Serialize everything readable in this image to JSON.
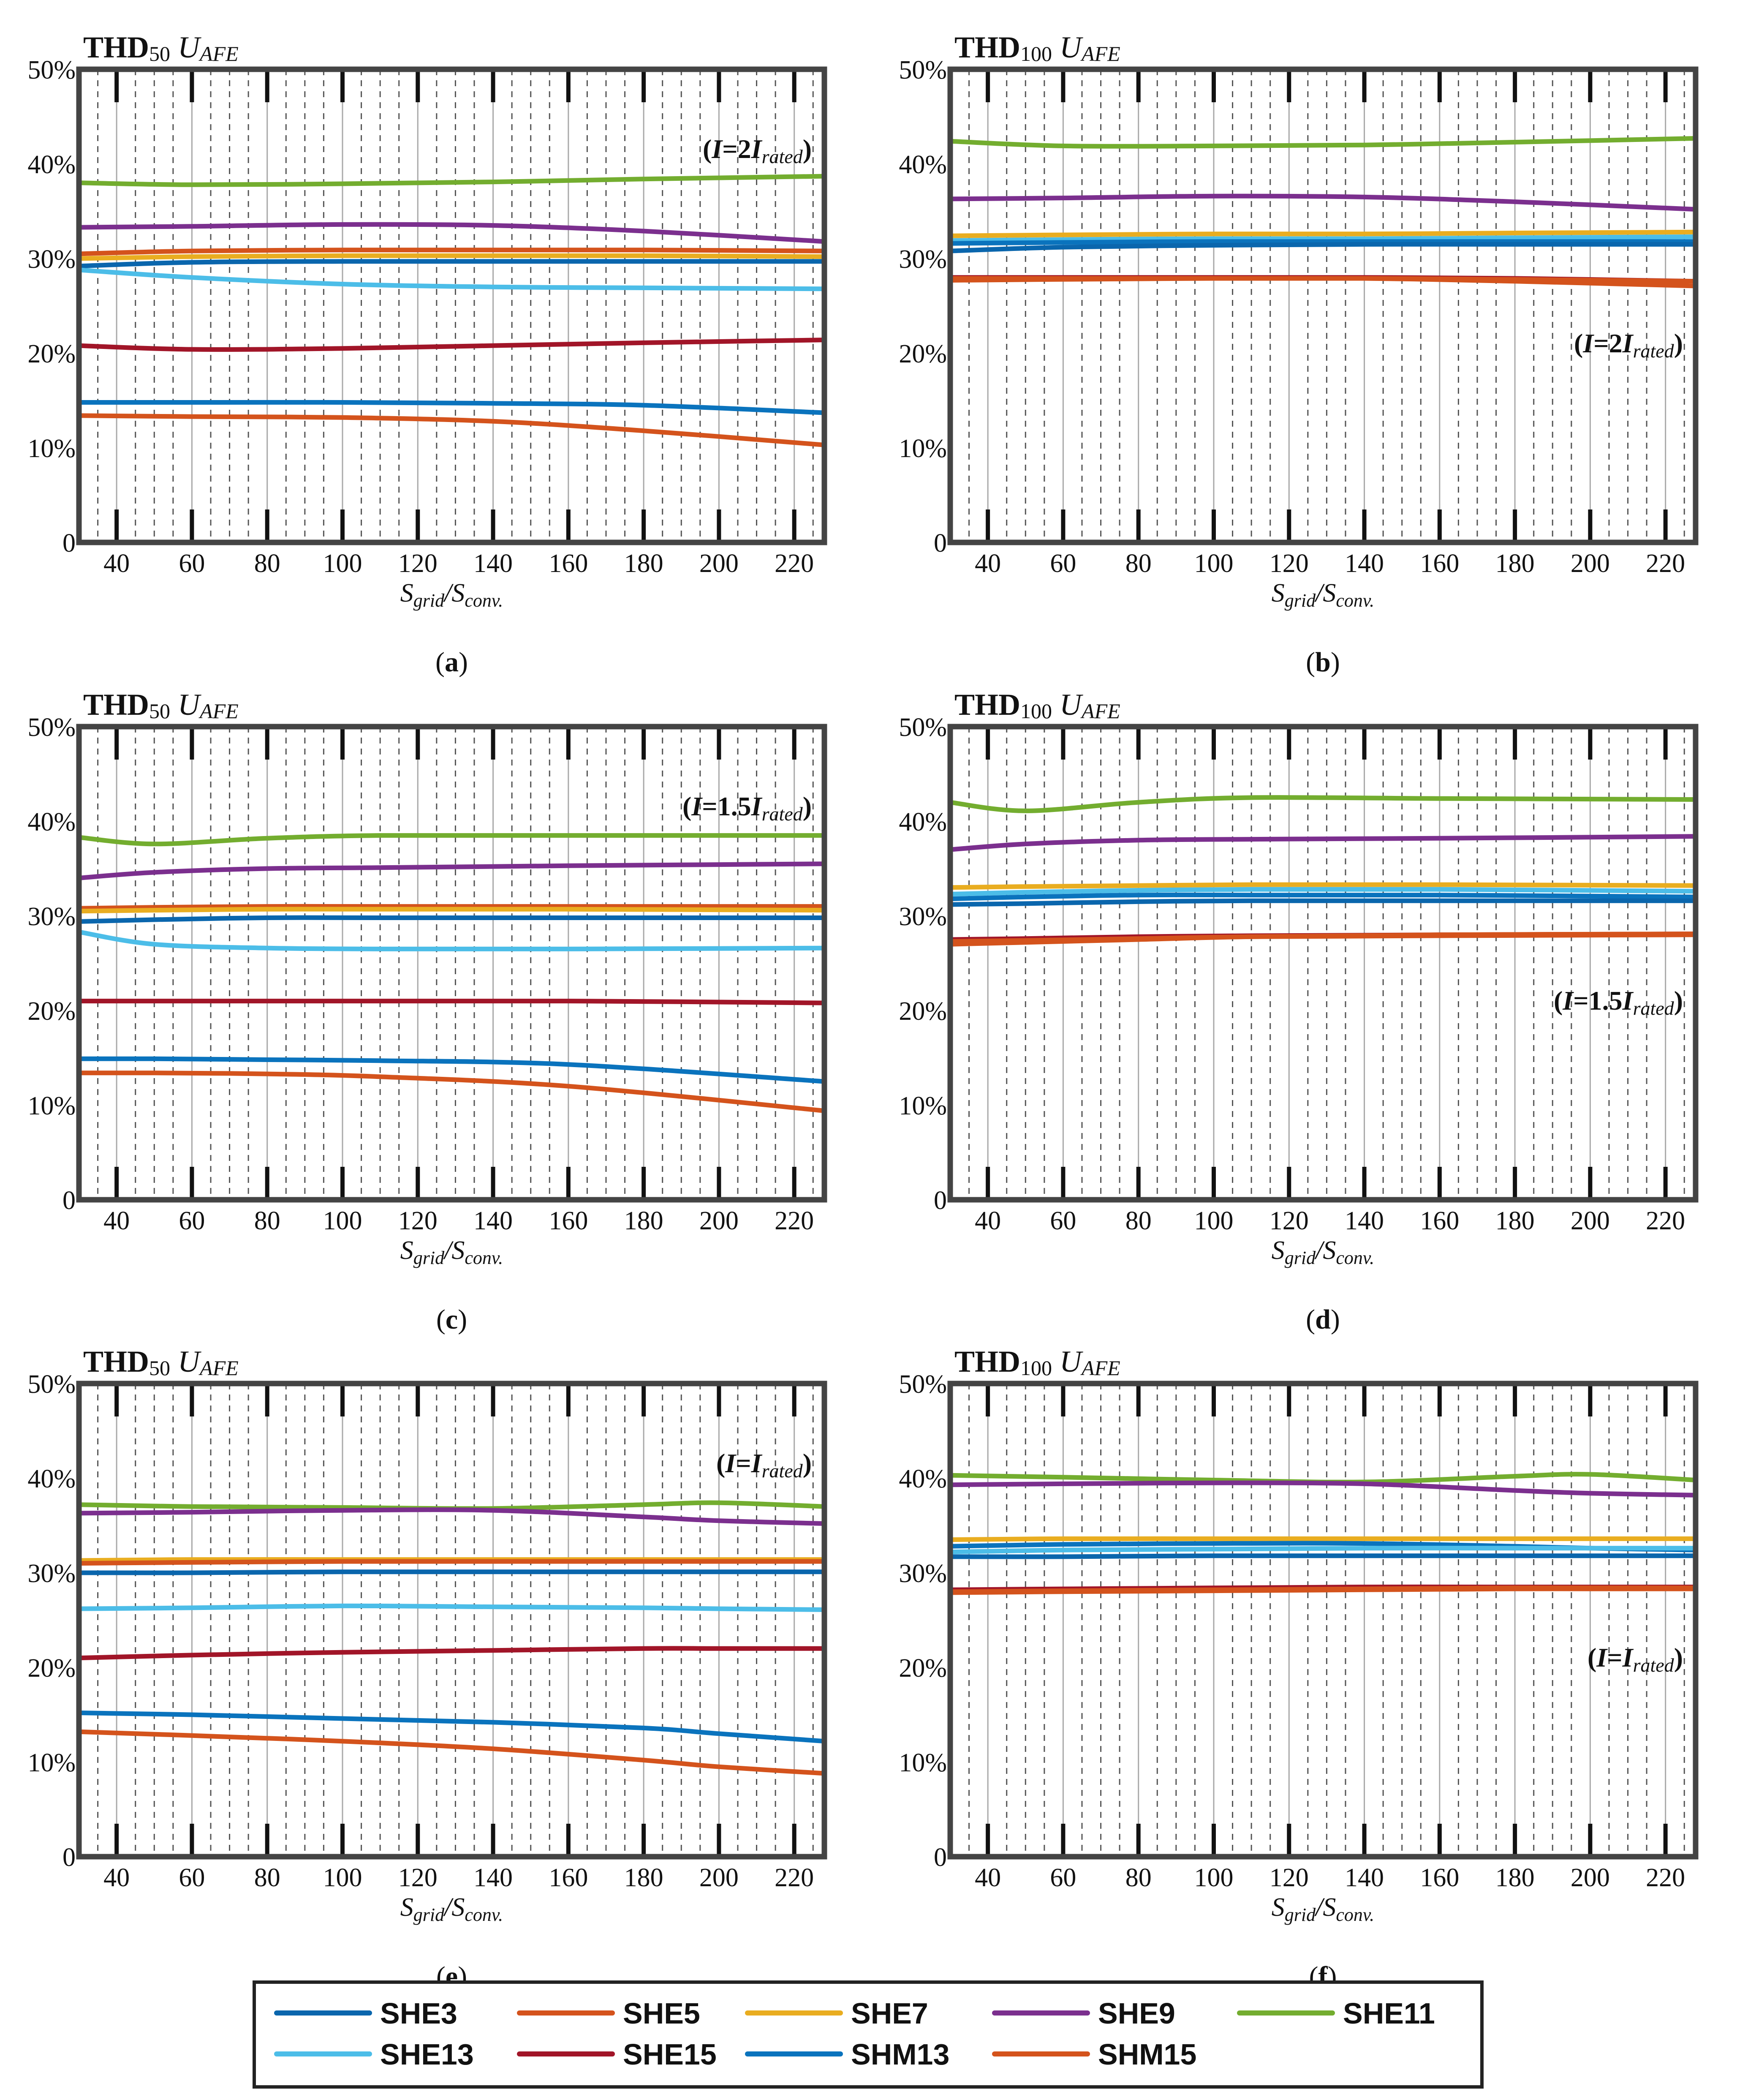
{
  "legend": [
    {
      "name": "SHE3",
      "color": "#0a66ad"
    },
    {
      "name": "SHE5",
      "color": "#d4531c"
    },
    {
      "name": "SHE7",
      "color": "#e9ad20"
    },
    {
      "name": "SHE9",
      "color": "#7b2f8e"
    },
    {
      "name": "SHE11",
      "color": "#73ad2f"
    },
    {
      "name": "SHE13",
      "color": "#4cbde8"
    },
    {
      "name": "SHE15",
      "color": "#a11528"
    },
    {
      "name": "SHM13",
      "color": "#0a73bd"
    },
    {
      "name": "SHM15",
      "color": "#d4531c"
    }
  ],
  "chart_data": [
    {
      "id": "a",
      "type": "line",
      "caption": "a",
      "title": {
        "main": "THD",
        "sub": "50",
        "u": "U",
        "u_sub": "AFE"
      },
      "annotation": {
        "open": "(",
        "i1": "I",
        "mid": "=2",
        "i2": "I",
        "sub": "rated",
        "close": ")"
      },
      "xlabel": {
        "s1": "S",
        "sub1": "grid",
        "slash": "/",
        "s2": "S",
        "sub2": "conv."
      },
      "xlim": [
        30,
        228
      ],
      "ylim": [
        0,
        50
      ],
      "xticks": [
        "40",
        "60",
        "80",
        "100",
        "120",
        "140",
        "160",
        "180",
        "200",
        "220"
      ],
      "yticks": [
        "0",
        "10%",
        "20%",
        "30%",
        "40%",
        "50%"
      ],
      "x": [
        30,
        60,
        100,
        140,
        180,
        228
      ],
      "series": [
        {
          "name": "SHE11",
          "color": "#73ad2f",
          "values": [
            38.0,
            37.8,
            37.9,
            38.1,
            38.4,
            38.7
          ]
        },
        {
          "name": "SHE9",
          "color": "#7b2f8e",
          "values": [
            33.3,
            33.4,
            33.6,
            33.5,
            32.9,
            31.8
          ]
        },
        {
          "name": "SHM15",
          "color": "#d4531c",
          "values": [
            30.5,
            30.8,
            30.9,
            30.9,
            30.9,
            30.8
          ]
        },
        {
          "name": "SHE7",
          "color": "#e9ad20",
          "values": [
            30.0,
            30.2,
            30.3,
            30.3,
            30.3,
            30.2
          ]
        },
        {
          "name": "SHE3",
          "color": "#0a66ad",
          "values": [
            29.2,
            29.6,
            29.7,
            29.7,
            29.7,
            29.7
          ]
        },
        {
          "name": "SHE13",
          "color": "#4cbde8",
          "values": [
            28.8,
            28.0,
            27.3,
            27.0,
            26.9,
            26.8
          ]
        },
        {
          "name": "SHE15",
          "color": "#a11528",
          "values": [
            20.8,
            20.4,
            20.5,
            20.8,
            21.1,
            21.4
          ]
        },
        {
          "name": "SHM13",
          "color": "#0a73bd",
          "values": [
            14.8,
            14.8,
            14.8,
            14.7,
            14.5,
            13.7
          ]
        },
        {
          "name": "SHE5",
          "color": "#d4531c",
          "values": [
            13.4,
            13.3,
            13.2,
            12.8,
            11.8,
            10.3
          ]
        }
      ]
    },
    {
      "id": "b",
      "type": "line",
      "caption": "b",
      "title": {
        "main": "THD",
        "sub": "100",
        "u": "U",
        "u_sub": "AFE"
      },
      "annotation": {
        "open": "(",
        "i1": "I",
        "mid": "=2",
        "i2": "I",
        "sub": "rated",
        "close": ")"
      },
      "xlabel": {
        "s1": "S",
        "sub1": "grid",
        "slash": "/",
        "s2": "S",
        "sub2": "conv."
      },
      "xlim": [
        30,
        228
      ],
      "ylim": [
        0,
        50
      ],
      "xticks": [
        "40",
        "60",
        "80",
        "100",
        "120",
        "140",
        "160",
        "180",
        "200",
        "220"
      ],
      "yticks": [
        "0",
        "10%",
        "20%",
        "30%",
        "40%",
        "50%"
      ],
      "x": [
        30,
        60,
        100,
        140,
        180,
        228
      ],
      "series": [
        {
          "name": "SHE11",
          "color": "#73ad2f",
          "values": [
            42.4,
            41.9,
            41.9,
            42.0,
            42.3,
            42.7
          ]
        },
        {
          "name": "SHE9",
          "color": "#7b2f8e",
          "values": [
            36.3,
            36.4,
            36.6,
            36.5,
            36.0,
            35.2
          ]
        },
        {
          "name": "SHE7",
          "color": "#e9ad20",
          "values": [
            32.4,
            32.5,
            32.6,
            32.6,
            32.7,
            32.8
          ]
        },
        {
          "name": "SHE13",
          "color": "#4cbde8",
          "values": [
            31.9,
            32.0,
            32.1,
            32.1,
            32.2,
            32.3
          ]
        },
        {
          "name": "SHM13",
          "color": "#0a73bd",
          "values": [
            31.6,
            31.7,
            31.8,
            31.8,
            31.8,
            31.8
          ]
        },
        {
          "name": "SHE3",
          "color": "#0a66ad",
          "values": [
            30.8,
            31.2,
            31.4,
            31.5,
            31.5,
            31.5
          ]
        },
        {
          "name": "SHE15",
          "color": "#a11528",
          "values": [
            28.0,
            28.0,
            28.0,
            28.0,
            27.9,
            27.6
          ]
        },
        {
          "name": "SHE5",
          "color": "#d4531c",
          "values": [
            27.9,
            27.9,
            27.9,
            27.9,
            27.6,
            27.1
          ]
        },
        {
          "name": "SHM15",
          "color": "#d4531c",
          "values": [
            27.7,
            27.8,
            27.9,
            27.9,
            27.8,
            27.6
          ]
        }
      ]
    },
    {
      "id": "c",
      "type": "line",
      "caption": "c",
      "title": {
        "main": "THD",
        "sub": "50",
        "u": "U",
        "u_sub": "AFE"
      },
      "annotation": {
        "open": "(",
        "i1": "I",
        "mid": "=1.5",
        "i2": "I",
        "sub": "rated",
        "close": ")"
      },
      "xlabel": {
        "s1": "S",
        "sub1": "grid",
        "slash": "/",
        "s2": "S",
        "sub2": "conv."
      },
      "xlim": [
        30,
        228
      ],
      "ylim": [
        0,
        50
      ],
      "xticks": [
        "40",
        "60",
        "80",
        "100",
        "120",
        "140",
        "160",
        "180",
        "200",
        "220"
      ],
      "yticks": [
        "0",
        "10%",
        "20%",
        "30%",
        "40%",
        "50%"
      ],
      "x": [
        30,
        50,
        80,
        110,
        160,
        228
      ],
      "series": [
        {
          "name": "SHE11",
          "color": "#73ad2f",
          "values": [
            38.3,
            37.6,
            38.2,
            38.5,
            38.5,
            38.5
          ]
        },
        {
          "name": "SHE9",
          "color": "#7b2f8e",
          "values": [
            34.0,
            34.6,
            35.0,
            35.1,
            35.3,
            35.5
          ]
        },
        {
          "name": "SHM15",
          "color": "#d4531c",
          "values": [
            30.8,
            30.9,
            31.0,
            31.0,
            31.0,
            31.0
          ]
        },
        {
          "name": "SHE7",
          "color": "#e9ad20",
          "values": [
            30.5,
            30.6,
            30.7,
            30.7,
            30.7,
            30.6
          ]
        },
        {
          "name": "SHE3",
          "color": "#0a66ad",
          "values": [
            29.4,
            29.6,
            29.8,
            29.8,
            29.8,
            29.8
          ]
        },
        {
          "name": "SHE13",
          "color": "#4cbde8",
          "values": [
            28.3,
            27.0,
            26.6,
            26.5,
            26.5,
            26.6
          ]
        },
        {
          "name": "SHE15",
          "color": "#a11528",
          "values": [
            21.0,
            21.0,
            21.0,
            21.0,
            21.0,
            20.8
          ]
        },
        {
          "name": "SHM13",
          "color": "#0a73bd",
          "values": [
            14.9,
            14.9,
            14.8,
            14.7,
            14.3,
            12.5
          ]
        },
        {
          "name": "SHE5",
          "color": "#d4531c",
          "values": [
            13.4,
            13.4,
            13.3,
            13.0,
            12.0,
            9.4
          ]
        }
      ]
    },
    {
      "id": "d",
      "type": "line",
      "caption": "d",
      "title": {
        "main": "THD",
        "sub": "100",
        "u": "U",
        "u_sub": "AFE"
      },
      "annotation": {
        "open": "(",
        "i1": "I",
        "mid": "=1.5",
        "i2": "I",
        "sub": "rated",
        "close": ")"
      },
      "xlabel": {
        "s1": "S",
        "sub1": "grid",
        "slash": "/",
        "s2": "S",
        "sub2": "conv."
      },
      "xlim": [
        30,
        228
      ],
      "ylim": [
        0,
        50
      ],
      "xticks": [
        "40",
        "60",
        "80",
        "100",
        "120",
        "140",
        "160",
        "180",
        "200",
        "220"
      ],
      "yticks": [
        "0",
        "10%",
        "20%",
        "30%",
        "40%",
        "50%"
      ],
      "x": [
        30,
        50,
        80,
        110,
        160,
        228
      ],
      "series": [
        {
          "name": "SHE11",
          "color": "#73ad2f",
          "values": [
            42.0,
            41.1,
            42.0,
            42.5,
            42.4,
            42.3
          ]
        },
        {
          "name": "SHE9",
          "color": "#7b2f8e",
          "values": [
            37.0,
            37.6,
            38.0,
            38.1,
            38.2,
            38.4
          ]
        },
        {
          "name": "SHE7",
          "color": "#e9ad20",
          "values": [
            33.0,
            33.1,
            33.2,
            33.3,
            33.3,
            33.2
          ]
        },
        {
          "name": "SHE13",
          "color": "#4cbde8",
          "values": [
            32.3,
            32.5,
            32.7,
            32.8,
            32.8,
            32.6
          ]
        },
        {
          "name": "SHM13",
          "color": "#0a73bd",
          "values": [
            31.8,
            32.0,
            32.2,
            32.2,
            32.2,
            32.0
          ]
        },
        {
          "name": "SHE3",
          "color": "#0a66ad",
          "values": [
            31.2,
            31.3,
            31.5,
            31.6,
            31.6,
            31.6
          ]
        },
        {
          "name": "SHE15",
          "color": "#a11528",
          "values": [
            27.5,
            27.6,
            27.8,
            27.9,
            28.0,
            28.1
          ]
        },
        {
          "name": "SHE5",
          "color": "#d4531c",
          "values": [
            27.3,
            27.4,
            27.6,
            27.8,
            27.9,
            28.0
          ]
        },
        {
          "name": "SHM15",
          "color": "#d4531c",
          "values": [
            27.0,
            27.2,
            27.5,
            27.8,
            28.0,
            28.1
          ]
        }
      ]
    },
    {
      "id": "e",
      "type": "line",
      "caption": "e",
      "title": {
        "main": "THD",
        "sub": "50",
        "u": "U",
        "u_sub": "AFE"
      },
      "annotation": {
        "open": "(",
        "i1": "I",
        "mid": "=",
        "i2": "I",
        "sub": "rated",
        "close": ")"
      },
      "xlabel": {
        "s1": "S",
        "sub1": "grid",
        "slash": "/",
        "s2": "S",
        "sub2": "conv."
      },
      "xlim": [
        30,
        228
      ],
      "ylim": [
        0,
        50
      ],
      "xticks": [
        "40",
        "60",
        "80",
        "100",
        "120",
        "140",
        "160",
        "180",
        "200",
        "220"
      ],
      "yticks": [
        "0",
        "10%",
        "20%",
        "30%",
        "40%",
        "50%"
      ],
      "x": [
        30,
        60,
        100,
        140,
        180,
        200,
        228
      ],
      "series": [
        {
          "name": "SHE11",
          "color": "#73ad2f",
          "values": [
            37.2,
            37.0,
            36.9,
            36.8,
            37.2,
            37.4,
            37.0
          ]
        },
        {
          "name": "SHE9",
          "color": "#7b2f8e",
          "values": [
            36.3,
            36.4,
            36.6,
            36.6,
            35.9,
            35.5,
            35.2
          ]
        },
        {
          "name": "SHE7",
          "color": "#e9ad20",
          "values": [
            31.3,
            31.4,
            31.4,
            31.4,
            31.4,
            31.4,
            31.4
          ]
        },
        {
          "name": "SHM15",
          "color": "#d4531c",
          "values": [
            31.0,
            31.1,
            31.2,
            31.2,
            31.2,
            31.2,
            31.2
          ]
        },
        {
          "name": "SHE3",
          "color": "#0a66ad",
          "values": [
            30.0,
            30.0,
            30.1,
            30.1,
            30.1,
            30.1,
            30.1
          ]
        },
        {
          "name": "SHE13",
          "color": "#4cbde8",
          "values": [
            26.2,
            26.3,
            26.5,
            26.4,
            26.3,
            26.2,
            26.1
          ]
        },
        {
          "name": "SHE15",
          "color": "#a11528",
          "values": [
            21.0,
            21.3,
            21.6,
            21.8,
            22.0,
            22.0,
            22.0
          ]
        },
        {
          "name": "SHM13",
          "color": "#0a73bd",
          "values": [
            15.2,
            15.0,
            14.6,
            14.2,
            13.6,
            13.0,
            12.2
          ]
        },
        {
          "name": "SHE5",
          "color": "#d4531c",
          "values": [
            13.2,
            12.8,
            12.2,
            11.4,
            10.2,
            9.5,
            8.8
          ]
        }
      ]
    },
    {
      "id": "f",
      "type": "line",
      "caption": "f",
      "title": {
        "main": "THD",
        "sub": "100",
        "u": "U",
        "u_sub": "AFE"
      },
      "annotation": {
        "open": "(",
        "i1": "I",
        "mid": "=",
        "i2": "I",
        "sub": "rated",
        "close": ")"
      },
      "xlabel": {
        "s1": "S",
        "sub1": "grid",
        "slash": "/",
        "s2": "S",
        "sub2": "conv."
      },
      "xlim": [
        30,
        228
      ],
      "ylim": [
        0,
        50
      ],
      "xticks": [
        "40",
        "60",
        "80",
        "100",
        "120",
        "140",
        "160",
        "180",
        "200",
        "220"
      ],
      "yticks": [
        "0",
        "10%",
        "20%",
        "30%",
        "40%",
        "50%"
      ],
      "x": [
        30,
        60,
        100,
        140,
        180,
        200,
        228
      ],
      "series": [
        {
          "name": "SHE11",
          "color": "#73ad2f",
          "values": [
            40.3,
            40.1,
            39.8,
            39.6,
            40.2,
            40.4,
            39.8
          ]
        },
        {
          "name": "SHE9",
          "color": "#7b2f8e",
          "values": [
            39.3,
            39.4,
            39.5,
            39.4,
            38.7,
            38.4,
            38.2
          ]
        },
        {
          "name": "SHE7",
          "color": "#e9ad20",
          "values": [
            33.5,
            33.6,
            33.6,
            33.6,
            33.6,
            33.6,
            33.6
          ]
        },
        {
          "name": "SHM13",
          "color": "#0a73bd",
          "values": [
            32.8,
            33.0,
            33.1,
            33.1,
            32.8,
            32.6,
            32.4
          ]
        },
        {
          "name": "SHE13",
          "color": "#4cbde8",
          "values": [
            32.2,
            32.4,
            32.5,
            32.6,
            32.6,
            32.6,
            32.6
          ]
        },
        {
          "name": "SHE3",
          "color": "#0a66ad",
          "values": [
            31.7,
            31.7,
            31.8,
            31.8,
            31.8,
            31.8,
            31.8
          ]
        },
        {
          "name": "SHE15",
          "color": "#a11528",
          "values": [
            28.2,
            28.3,
            28.4,
            28.5,
            28.5,
            28.5,
            28.5
          ]
        },
        {
          "name": "SHE5",
          "color": "#d4531c",
          "values": [
            28.0,
            28.1,
            28.2,
            28.3,
            28.4,
            28.4,
            28.4
          ]
        },
        {
          "name": "SHM15",
          "color": "#d4531c",
          "values": [
            27.9,
            28.0,
            28.1,
            28.2,
            28.3,
            28.3,
            28.3
          ]
        }
      ]
    }
  ]
}
